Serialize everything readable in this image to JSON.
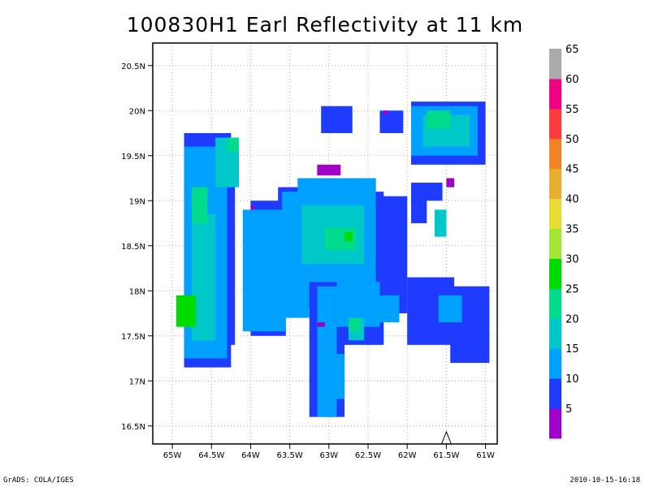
{
  "title": "100830H1 Earl Reflectivity at 11 km",
  "footer": {
    "left": "GrADS: COLA/IGES",
    "right": "2010-10-15-16:18"
  },
  "chart_data": {
    "type": "heatmap",
    "title": "100830H1 Earl Reflectivity at 11 km",
    "xlabel": "",
    "ylabel": "",
    "xlim": [
      -65.25,
      -60.85
    ],
    "ylim": [
      16.3,
      20.75
    ],
    "x_ticks": [
      {
        "value": -65,
        "label": "65W"
      },
      {
        "value": -64.5,
        "label": "64.5W"
      },
      {
        "value": -64,
        "label": "64W"
      },
      {
        "value": -63.5,
        "label": "63.5W"
      },
      {
        "value": -63,
        "label": "63W"
      },
      {
        "value": -62.5,
        "label": "62.5W"
      },
      {
        "value": -62,
        "label": "62W"
      },
      {
        "value": -61.5,
        "label": "61.5W"
      },
      {
        "value": -61,
        "label": "61W"
      }
    ],
    "y_ticks": [
      {
        "value": 16.5,
        "label": "16.5N"
      },
      {
        "value": 17,
        "label": "17N"
      },
      {
        "value": 17.5,
        "label": "17.5N"
      },
      {
        "value": 18,
        "label": "18N"
      },
      {
        "value": 18.5,
        "label": "18.5N"
      },
      {
        "value": 19,
        "label": "19N"
      },
      {
        "value": 19.5,
        "label": "19.5N"
      },
      {
        "value": 20,
        "label": "20N"
      },
      {
        "value": 20.5,
        "label": "20.5N"
      }
    ],
    "grid": true,
    "colorbar": {
      "labels": [
        "5",
        "10",
        "15",
        "20",
        "25",
        "30",
        "35",
        "40",
        "45",
        "50",
        "55",
        "60",
        "65"
      ],
      "colors": [
        "#a000c8",
        "#1e3cff",
        "#00a0ff",
        "#00c8c8",
        "#00dc8c",
        "#00dc00",
        "#a0e632",
        "#e6dc32",
        "#e6af2d",
        "#f08228",
        "#fa3c3c",
        "#f00082",
        "#aaaaaa"
      ]
    },
    "levels": [
      {
        "level": 10,
        "value": "10-15",
        "color": "#1e3cff",
        "rects": [
          [
            -64.85,
            -64.25,
            17.15,
            19.75
          ],
          [
            -64.3,
            -64.2,
            17.4,
            19.5
          ],
          [
            -64.0,
            -63.55,
            17.5,
            19.0
          ],
          [
            -63.65,
            -63.2,
            17.8,
            19.15
          ],
          [
            -63.25,
            -62.8,
            16.6,
            18.1
          ],
          [
            -62.85,
            -62.3,
            17.4,
            19.1
          ],
          [
            -62.6,
            -62.0,
            17.75,
            19.05
          ],
          [
            -62.0,
            -61.4,
            17.4,
            18.15
          ],
          [
            -61.45,
            -60.95,
            17.2,
            18.05
          ],
          [
            -63.1,
            -62.7,
            19.75,
            20.05
          ],
          [
            -62.35,
            -62.05,
            19.75,
            20.0
          ],
          [
            -61.85,
            -61.55,
            19.0,
            19.2
          ],
          [
            -61.95,
            -61.0,
            19.4,
            20.1
          ],
          [
            -61.95,
            -61.75,
            18.75,
            19.2
          ]
        ]
      },
      {
        "level": 15,
        "value": "15-20",
        "color": "#00a0ff",
        "rects": [
          [
            -64.85,
            -64.3,
            17.25,
            19.6
          ],
          [
            -64.1,
            -63.55,
            17.55,
            18.9
          ],
          [
            -63.6,
            -63.25,
            17.7,
            19.1
          ],
          [
            -63.15,
            -62.9,
            16.6,
            18.05
          ],
          [
            -63.4,
            -62.4,
            18.1,
            19.25
          ],
          [
            -62.9,
            -62.35,
            17.6,
            18.1
          ],
          [
            -61.95,
            -61.1,
            19.5,
            20.05
          ],
          [
            -62.5,
            -62.1,
            17.65,
            17.95
          ],
          [
            -61.6,
            -61.3,
            17.65,
            17.95
          ],
          [
            -63.05,
            -62.8,
            16.8,
            17.3
          ]
        ]
      },
      {
        "level": 20,
        "value": "20-25",
        "color": "#00c8c8",
        "rects": [
          [
            -64.75,
            -64.45,
            17.45,
            18.85
          ],
          [
            -64.45,
            -64.15,
            19.15,
            19.7
          ],
          [
            -63.35,
            -62.55,
            18.3,
            18.95
          ],
          [
            -61.8,
            -61.2,
            19.6,
            19.95
          ],
          [
            -62.75,
            -62.55,
            17.45,
            17.7
          ],
          [
            -61.65,
            -61.5,
            18.6,
            18.9
          ]
        ]
      },
      {
        "level": 25,
        "value": "25-30",
        "color": "#00dc8c",
        "rects": [
          [
            -64.75,
            -64.55,
            18.75,
            19.15
          ],
          [
            -63.05,
            -62.65,
            18.45,
            18.7
          ],
          [
            -61.75,
            -61.45,
            19.8,
            20.0
          ],
          [
            -64.3,
            -64.15,
            19.55,
            19.7
          ],
          [
            -62.75,
            -62.6,
            17.55,
            17.7
          ]
        ]
      },
      {
        "level": 30,
        "value": "30-35",
        "color": "#00dc00",
        "rects": [
          [
            -64.95,
            -64.7,
            17.6,
            17.95
          ],
          [
            -62.8,
            -62.7,
            18.55,
            18.65
          ]
        ]
      },
      {
        "level": 5,
        "value": "5-10",
        "color": "#a000c8",
        "rects": [
          [
            -63.15,
            -62.85,
            19.28,
            19.4
          ],
          [
            -63.15,
            -63.05,
            17.6,
            17.65
          ],
          [
            -61.5,
            -61.4,
            19.15,
            19.25
          ],
          [
            -62.3,
            -62.25,
            19.95,
            20.0
          ],
          [
            -64.0,
            -63.95,
            18.9,
            18.95
          ]
        ]
      }
    ],
    "annotation": "triangle marker near 61.5W, 16.4N"
  }
}
